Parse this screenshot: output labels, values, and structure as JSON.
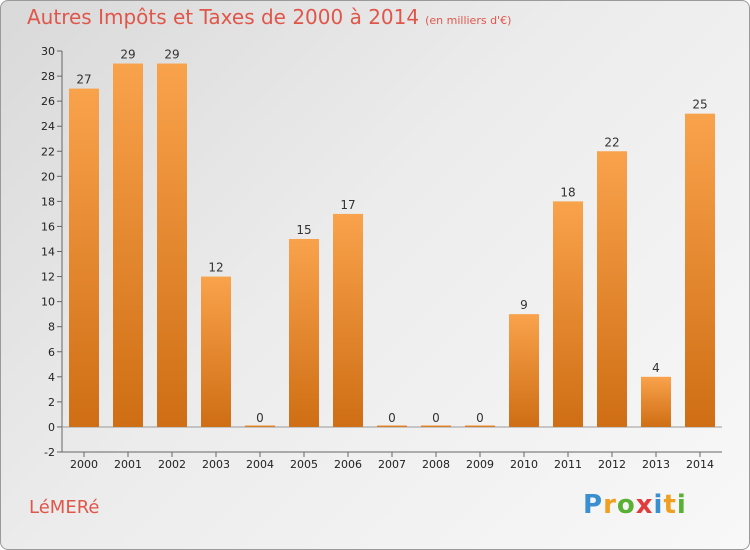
{
  "title": "Autres Impôts et Taxes de 2000 à 2014",
  "subtitle": "(en milliers d'€)",
  "commune": "LéMERé",
  "logo": {
    "letters": [
      "P",
      "r",
      "o",
      "x",
      "i",
      "t",
      "i"
    ],
    "colors": [
      "#3a8fd0",
      "#f0a020",
      "#59b033",
      "#e23b3b",
      "#3a8fd0",
      "#f0a020",
      "#59b033"
    ]
  },
  "colors": {
    "bar_light": "#f9a24c",
    "bar_dark": "#cf6e14"
  },
  "chart_data": {
    "type": "bar",
    "categories": [
      "2000",
      "2001",
      "2002",
      "2003",
      "2004",
      "2005",
      "2006",
      "2007",
      "2008",
      "2009",
      "2010",
      "2011",
      "2012",
      "2013",
      "2014"
    ],
    "values": [
      27,
      29,
      29,
      12,
      0,
      15,
      17,
      0,
      0,
      0,
      9,
      18,
      22,
      4,
      25
    ],
    "ylim": [
      -2,
      30
    ],
    "yticks": [
      -2,
      0,
      2,
      4,
      6,
      8,
      10,
      12,
      14,
      16,
      18,
      20,
      22,
      24,
      26,
      28,
      30
    ],
    "grid": false,
    "data_labels": true
  }
}
